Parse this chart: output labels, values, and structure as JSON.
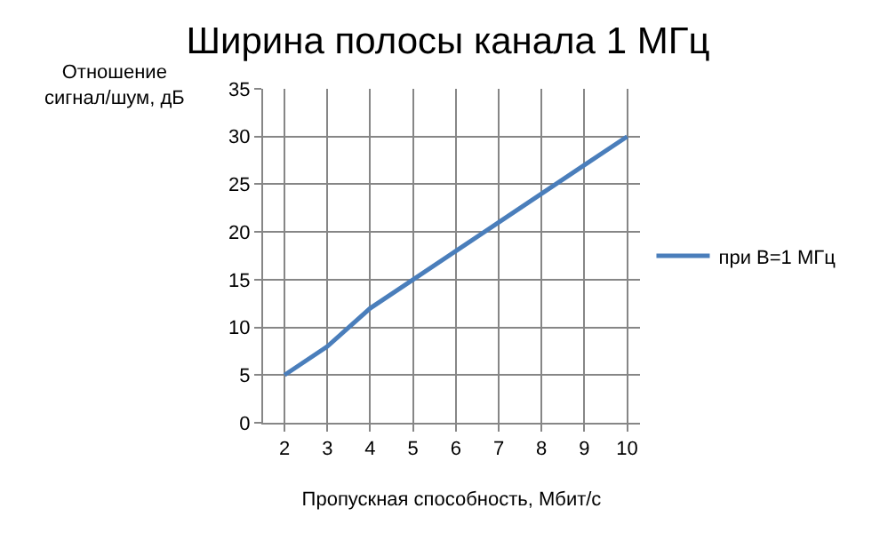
{
  "chart_data": {
    "type": "line",
    "title": "Ширина полосы канала 1 МГц",
    "xlabel": "Пропускная способность, Мбит/с",
    "ylabel": "Отношение\nсигнал/шум, дБ",
    "x": [
      2,
      3,
      4,
      5,
      6,
      7,
      8,
      9,
      10
    ],
    "series": [
      {
        "name": "при B=1 МГц",
        "color": "#4a7ebb",
        "values": [
          5,
          8,
          12,
          15,
          18,
          21,
          24,
          27,
          30
        ]
      }
    ],
    "xlim": [
      1.5,
      10.3
    ],
    "xticks": [
      2,
      3,
      4,
      5,
      6,
      7,
      8,
      9,
      10
    ],
    "ylim": [
      0,
      35
    ],
    "yticks": [
      0,
      5,
      10,
      15,
      20,
      25,
      30,
      35
    ],
    "grid": true,
    "legend": "right",
    "marker": "none",
    "line_style": "solid"
  }
}
